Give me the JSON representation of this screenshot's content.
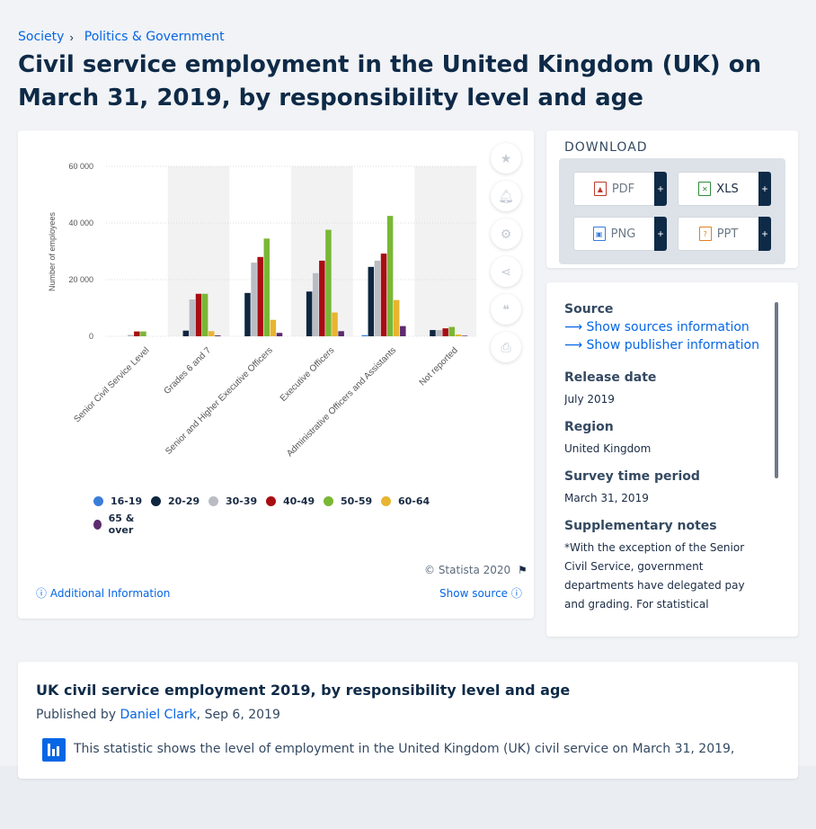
{
  "breadcrumb": {
    "items": [
      "Society",
      "Politics & Government"
    ],
    "separator": "›"
  },
  "page_title": "Civil service employment in the United Kingdom (UK) on March 31, 2019, by responsibility level and age",
  "toolbar": {
    "icons": [
      "star-icon",
      "bell-icon",
      "gear-icon",
      "share-icon",
      "quote-icon",
      "print-icon"
    ]
  },
  "download": {
    "title": "DOWNLOAD",
    "buttons": [
      {
        "label": "PDF",
        "plus": "+",
        "icon": "pdf-icon"
      },
      {
        "label": "XLS",
        "plus": "+",
        "icon": "xls-icon"
      },
      {
        "label": "PNG",
        "plus": "+",
        "icon": "png-icon"
      },
      {
        "label": "PPT",
        "plus": "+",
        "icon": "ppt-icon"
      }
    ]
  },
  "info": {
    "source_heading": "Source",
    "show_sources": "Show sources information",
    "show_publisher": "Show publisher information",
    "release_heading": "Release date",
    "release_value": "July 2019",
    "region_heading": "Region",
    "region_value": "United Kingdom",
    "survey_heading": "Survey time period",
    "survey_value": "March 31, 2019",
    "notes_heading": "Supplementary notes",
    "notes_value": "*With the exception of the Senior Civil Service, government departments have delegated pay and grading. For statistical"
  },
  "chart_footer": {
    "copyright": "© Statista 2020",
    "additional_info": "Additional Information",
    "show_source": "Show source"
  },
  "description": {
    "title": "UK civil service employment 2019, by responsibility level and age",
    "published_by": "Published by",
    "author": "Daniel Clark",
    "date": ", Sep 6, 2019",
    "text": "This statistic shows the level of employment in the United Kingdom (UK) civil service on March 31, 2019,"
  },
  "chart_data": {
    "type": "bar",
    "ylabel": "Number of employees",
    "ylim": [
      0,
      60000
    ],
    "yticks": [
      "0",
      "20 000",
      "40 000",
      "60 000"
    ],
    "ytick_values": [
      0,
      20000,
      40000,
      60000
    ],
    "categories": [
      "Senior Civil Service Level",
      "Grades 6 and 7",
      "Senior and Higher Executive Officers",
      "Executive Officers",
      "Administrative Officers and Assistants",
      "Not reported"
    ],
    "series": [
      {
        "name": "16-19",
        "color": "#3a7dd9",
        "values": [
          0,
          0,
          0,
          0,
          400,
          0
        ]
      },
      {
        "name": "20-29",
        "color": "#0f2640",
        "values": [
          0,
          2000,
          15300,
          15800,
          24500,
          2200
        ]
      },
      {
        "name": "30-39",
        "color": "#b9bdc3",
        "values": [
          500,
          13000,
          26000,
          22300,
          26700,
          2200
        ]
      },
      {
        "name": "40-49",
        "color": "#a80d12",
        "values": [
          1700,
          15000,
          28000,
          26700,
          29200,
          2800
        ]
      },
      {
        "name": "50-59",
        "color": "#7ab735",
        "values": [
          1700,
          15000,
          34500,
          37600,
          42500,
          3300
        ]
      },
      {
        "name": "60-64",
        "color": "#e7b52f",
        "values": [
          0,
          1800,
          5800,
          8400,
          12800,
          600
        ]
      },
      {
        "name": "65 & over",
        "color": "#5c2b6f",
        "values": [
          0,
          300,
          1200,
          1800,
          3600,
          200
        ]
      }
    ],
    "legend_position": "bottom",
    "grid": true
  }
}
